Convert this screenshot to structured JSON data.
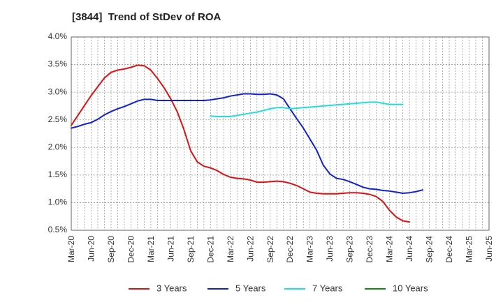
{
  "chart_data": {
    "type": "line",
    "title": "[3844]  Trend of StDev of ROA",
    "xlabel": "",
    "ylabel": "",
    "ylim": [
      0.5,
      4.0
    ],
    "y_ticks": [
      "0.5%",
      "1.0%",
      "1.5%",
      "2.0%",
      "2.5%",
      "3.0%",
      "3.5%",
      "4.0%"
    ],
    "y_tick_values": [
      0.5,
      1.0,
      1.5,
      2.0,
      2.5,
      3.0,
      3.5,
      4.0
    ],
    "x_ticks": [
      "Mar-20",
      "Jun-20",
      "Sep-20",
      "Dec-20",
      "Mar-21",
      "Jun-21",
      "Sep-21",
      "Dec-21",
      "Mar-22",
      "Jun-22",
      "Sep-22",
      "Dec-22",
      "Mar-23",
      "Jun-23",
      "Sep-23",
      "Dec-23",
      "Mar-24",
      "Jun-24",
      "Sep-24",
      "Dec-24",
      "Mar-25",
      "Jun-25"
    ],
    "grid": true,
    "legend_position": "bottom",
    "series": [
      {
        "name": "3 Years",
        "color": "#dd1111",
        "start_index": 0,
        "values": [
          2.4,
          2.58,
          2.76,
          2.94,
          3.1,
          3.26,
          3.36,
          3.4,
          3.42,
          3.45,
          3.49,
          3.48,
          3.4,
          3.25,
          3.08,
          2.88,
          2.64,
          2.32,
          1.94,
          1.74,
          1.66,
          1.63,
          1.58,
          1.51,
          1.46,
          1.44,
          1.43,
          1.41,
          1.37,
          1.37,
          1.38,
          1.39,
          1.38,
          1.35,
          1.31,
          1.25,
          1.19,
          1.17,
          1.16,
          1.16,
          1.16,
          1.17,
          1.18,
          1.18,
          1.17,
          1.15,
          1.11,
          1.02,
          0.86,
          0.74,
          0.67,
          0.65
        ]
      },
      {
        "name": "5 Years",
        "color": "#1122cc",
        "start_index": 0,
        "values": [
          2.35,
          2.38,
          2.42,
          2.45,
          2.51,
          2.59,
          2.65,
          2.7,
          2.74,
          2.79,
          2.84,
          2.87,
          2.87,
          2.85,
          2.85,
          2.85,
          2.85,
          2.85,
          2.85,
          2.85,
          2.85,
          2.86,
          2.88,
          2.9,
          2.93,
          2.95,
          2.97,
          2.97,
          2.96,
          2.96,
          2.97,
          2.95,
          2.88,
          2.7,
          2.52,
          2.35,
          2.15,
          1.95,
          1.68,
          1.52,
          1.44,
          1.42,
          1.38,
          1.33,
          1.28,
          1.25,
          1.24,
          1.22,
          1.21,
          1.19,
          1.17,
          1.18,
          1.2,
          1.23
        ]
      },
      {
        "name": "7 Years",
        "color": "#22dddd",
        "start_index": 21,
        "values": [
          2.57,
          2.56,
          2.56,
          2.56,
          2.58,
          2.6,
          2.62,
          2.64,
          2.67,
          2.7,
          2.72,
          2.72,
          2.7,
          2.71,
          2.72,
          2.73,
          2.74,
          2.75,
          2.76,
          2.77,
          2.78,
          2.79,
          2.8,
          2.81,
          2.82,
          2.82,
          2.8,
          2.78,
          2.78,
          2.78
        ]
      },
      {
        "name": "10 Years",
        "color": "#118811",
        "start_index": 0,
        "values": []
      }
    ]
  }
}
